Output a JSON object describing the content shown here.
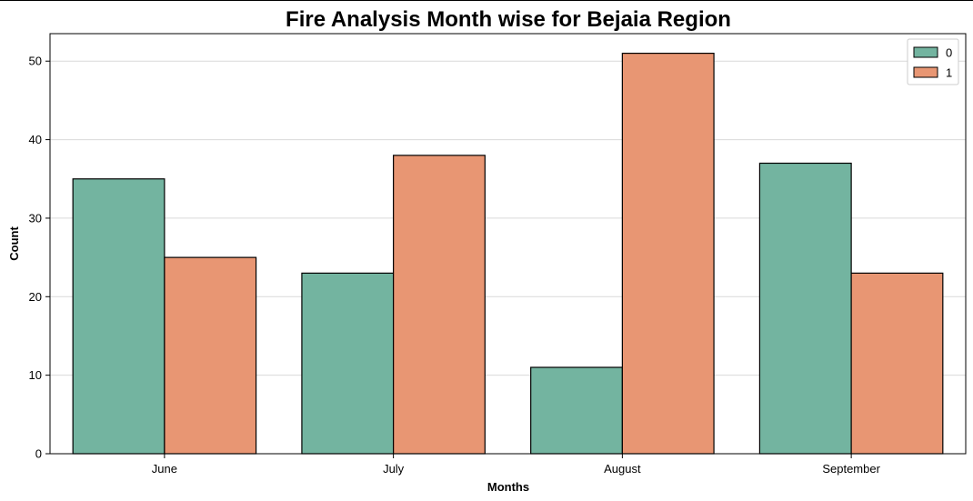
{
  "chart_data": {
    "type": "bar",
    "title": "Fire Analysis Month wise for Bejaia Region",
    "xlabel": "Months",
    "ylabel": "Count",
    "categories": [
      "June",
      "July",
      "August",
      "September"
    ],
    "series": [
      {
        "name": "0",
        "values": [
          35,
          23,
          11,
          37
        ],
        "color": "#73b4a0"
      },
      {
        "name": "1",
        "values": [
          25,
          38,
          51,
          23
        ],
        "color": "#e89673"
      }
    ],
    "ylim": [
      0,
      53.5
    ],
    "yticks": [
      0,
      10,
      20,
      30,
      40,
      50
    ],
    "grid": true,
    "legend_position": "top-right"
  }
}
